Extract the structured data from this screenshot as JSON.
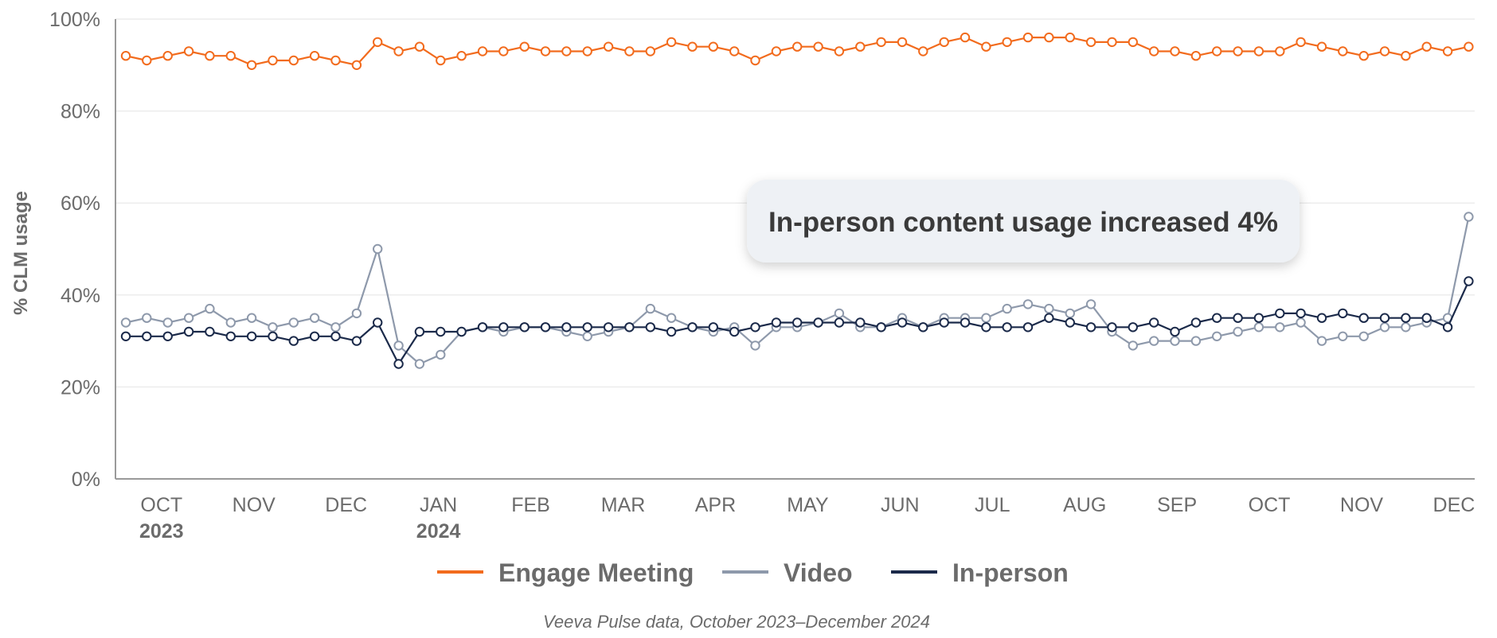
{
  "chart_data": {
    "type": "line",
    "ylabel": "% CLM usage",
    "ylim": [
      0,
      100
    ],
    "y_ticks": [
      {
        "value": 0,
        "label": "0%"
      },
      {
        "value": 20,
        "label": "20%"
      },
      {
        "value": 40,
        "label": "40%"
      },
      {
        "value": 60,
        "label": "60%"
      },
      {
        "value": 80,
        "label": "80%"
      },
      {
        "value": 100,
        "label": "100%"
      }
    ],
    "x_ticks": [
      {
        "index": 1.7,
        "label": "OCT",
        "year": "2023"
      },
      {
        "index": 6.1,
        "label": "NOV"
      },
      {
        "index": 10.5,
        "label": "DEC"
      },
      {
        "index": 14.9,
        "label": "JAN",
        "year": "2024"
      },
      {
        "index": 19.3,
        "label": "FEB"
      },
      {
        "index": 23.7,
        "label": "MAR"
      },
      {
        "index": 28.1,
        "label": "APR"
      },
      {
        "index": 32.5,
        "label": "MAY"
      },
      {
        "index": 36.9,
        "label": "JUN"
      },
      {
        "index": 41.3,
        "label": "JUL"
      },
      {
        "index": 45.7,
        "label": "AUG"
      },
      {
        "index": 50.1,
        "label": "SEP"
      },
      {
        "index": 54.5,
        "label": "OCT"
      },
      {
        "index": 58.9,
        "label": "NOV"
      },
      {
        "index": 63.3,
        "label": "DEC"
      }
    ],
    "series": [
      {
        "name": "Engage Meeting",
        "color": "#f26b1d",
        "values": [
          92,
          91,
          92,
          93,
          92,
          92,
          90,
          91,
          91,
          92,
          91,
          90,
          95,
          93,
          94,
          91,
          92,
          93,
          93,
          94,
          93,
          93,
          93,
          94,
          93,
          93,
          95,
          94,
          94,
          93,
          91,
          93,
          94,
          94,
          93,
          94,
          95,
          95,
          93,
          95,
          96,
          94,
          95,
          96,
          96,
          96,
          95,
          95,
          95,
          93,
          93,
          92,
          93,
          93,
          93,
          93,
          95,
          94,
          93,
          92,
          93,
          92,
          94,
          93,
          94
        ]
      },
      {
        "name": "Video",
        "color": "#8e99ab",
        "values": [
          34,
          35,
          34,
          35,
          37,
          34,
          35,
          33,
          34,
          35,
          33,
          36,
          50,
          29,
          25,
          27,
          32,
          33,
          32,
          33,
          33,
          32,
          31,
          32,
          33,
          37,
          35,
          33,
          32,
          33,
          29,
          33,
          33,
          34,
          36,
          33,
          33,
          35,
          33,
          35,
          35,
          35,
          37,
          38,
          37,
          36,
          38,
          32,
          29,
          30,
          30,
          30,
          31,
          32,
          33,
          33,
          34,
          30,
          31,
          31,
          33,
          33,
          34,
          35,
          57
        ]
      },
      {
        "name": "In-person",
        "color": "#1b2a4a",
        "values": [
          31,
          31,
          31,
          32,
          32,
          31,
          31,
          31,
          30,
          31,
          31,
          30,
          34,
          25,
          32,
          32,
          32,
          33,
          33,
          33,
          33,
          33,
          33,
          33,
          33,
          33,
          32,
          33,
          33,
          32,
          33,
          34,
          34,
          34,
          34,
          34,
          33,
          34,
          33,
          34,
          34,
          33,
          33,
          33,
          35,
          34,
          33,
          33,
          33,
          34,
          32,
          34,
          35,
          35,
          35,
          36,
          36,
          35,
          36,
          35,
          35,
          35,
          35,
          33,
          43
        ]
      }
    ],
    "annotation": "In-person content usage increased 4%",
    "source": "Veeva Pulse data, October 2023–December 2024"
  }
}
